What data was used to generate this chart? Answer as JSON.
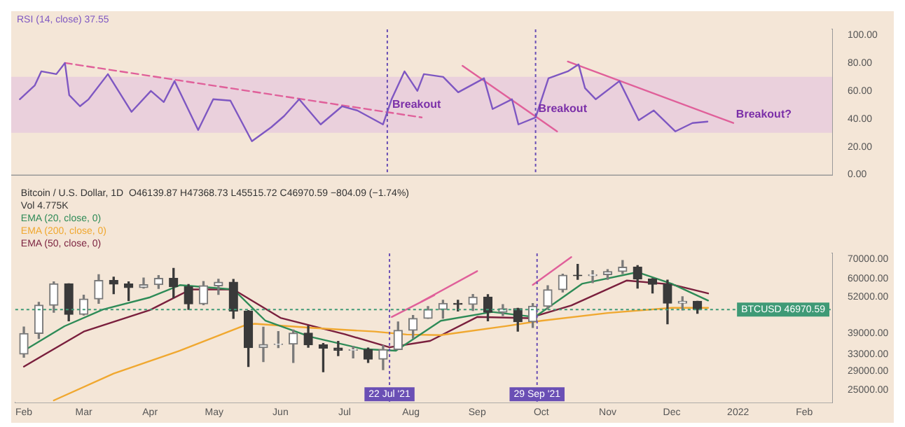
{
  "chart_data": [
    {
      "type": "line",
      "x": [
        "2021-02-01",
        "2021-02-08",
        "2021-02-11",
        "2021-02-18",
        "2021-02-22",
        "2021-02-24",
        "2021-03-01",
        "2021-03-05",
        "2021-03-14",
        "2021-03-25",
        "2021-04-03",
        "2021-04-09",
        "2021-04-14",
        "2021-04-25",
        "2021-05-02",
        "2021-05-10",
        "2021-05-20",
        "2021-05-29",
        "2021-06-04",
        "2021-06-11",
        "2021-06-21",
        "2021-07-01",
        "2021-07-08",
        "2021-07-20",
        "2021-07-24",
        "2021-07-30",
        "2021-08-05",
        "2021-08-08",
        "2021-08-17",
        "2021-08-24",
        "2021-09-05",
        "2021-09-09",
        "2021-09-18",
        "2021-09-21",
        "2021-09-29",
        "2021-10-05",
        "2021-10-14",
        "2021-10-19",
        "2021-10-22",
        "2021-10-27",
        "2021-11-07",
        "2021-11-16",
        "2021-11-23",
        "2021-12-03",
        "2021-12-11",
        "2021-12-18"
      ],
      "series": [
        {
          "name": "RSI (14, close) 37.55",
          "color": "#7e57c2",
          "values": [
            54,
            64,
            74,
            72,
            80,
            57,
            49,
            54,
            72,
            45,
            60,
            52,
            67,
            32,
            54,
            53,
            24,
            34,
            42,
            54,
            36,
            49,
            46,
            36,
            54,
            74,
            60,
            72,
            70,
            59,
            69,
            47,
            54,
            36,
            41,
            69,
            74,
            79,
            62,
            54,
            67,
            39,
            46,
            31,
            37,
            38
          ]
        },
        {
          "color": "#e0609a",
          "line_style": "dashed",
          "x": [
            "2021-02-22",
            "2021-08-07"
          ],
          "values": [
            80,
            41
          ]
        },
        {
          "color": "#e0609a",
          "x": [
            "2021-08-26",
            "2021-10-09"
          ],
          "values": [
            78,
            31
          ]
        },
        {
          "color": "#e0609a",
          "x": [
            "2021-10-14",
            "2021-12-30"
          ],
          "values": [
            81,
            37
          ]
        }
      ],
      "xlim": [
        "2021-01-28",
        "2022-02-14"
      ],
      "ylim": [
        0,
        104
      ],
      "yticks": [
        {
          "value": 0,
          "label": "0.00"
        },
        {
          "value": 20,
          "label": "20.00"
        },
        {
          "value": 40,
          "label": "40.00"
        },
        {
          "value": 60,
          "label": "60.00"
        },
        {
          "value": 80,
          "label": "80.00"
        },
        {
          "value": 100,
          "label": "100.00"
        }
      ],
      "bands": [
        {
          "axis": "y",
          "from": 30,
          "to": 70,
          "color": "#ead0dc"
        }
      ],
      "ref_lines": [
        {
          "axis": "x",
          "value": "2021-07-22",
          "color": "#6a4fb5",
          "line_style": "dotted"
        },
        {
          "axis": "x",
          "value": "2021-09-29",
          "color": "#6a4fb5",
          "line_style": "dotted"
        }
      ],
      "annotations": [
        {
          "text": "Breakout",
          "x": "2021-07-23",
          "y": 44
        },
        {
          "text": "Breakout",
          "x": "2021-09-29",
          "y": 41
        },
        {
          "text": "Breakout?",
          "x": "2021-12-30",
          "y": 37
        }
      ],
      "tick_labels": "y",
      "legend": "top left",
      "marker": "none"
    },
    {
      "type": "candlestick",
      "colors": [
        "#7a7a7a",
        "#7a7a7a",
        "#7a7a7a",
        "#3a3a3a",
        "#7a7a7a",
        "#7a7a7a",
        "#3a3a3a",
        "#3a3a3a",
        "#7a7a7a",
        "#7a7a7a",
        "#3a3a3a",
        "#3a3a3a",
        "#7a7a7a",
        "#7a7a7a",
        "#3a3a3a",
        "#3a3a3a",
        "#7a7a7a",
        "#7a7a7a",
        "#7a7a7a",
        "#3a3a3a",
        "#3a3a3a",
        "#3a3a3a",
        "#7a7a7a",
        "#3a3a3a",
        "#7a7a7a",
        "#7a7a7a",
        "#7a7a7a",
        "#7a7a7a",
        "#7a7a7a",
        "#3a3a3a",
        "#7a7a7a",
        "#3a3a3a",
        "#7a7a7a",
        "#3a3a3a",
        "#7a7a7a",
        "#7a7a7a",
        "#7a7a7a",
        "#3a3a3a",
        "#7a7a7a",
        "#7a7a7a",
        "#7a7a7a",
        "#3a3a3a",
        "#3a3a3a",
        "#3a3a3a",
        "#7a7a7a",
        "#3a3a3a"
      ],
      "x": [
        "2021-02-01",
        "2021-02-08",
        "2021-02-15",
        "2021-02-22",
        "2021-03-01",
        "2021-03-08",
        "2021-03-15",
        "2021-03-22",
        "2021-03-29",
        "2021-04-05",
        "2021-04-12",
        "2021-04-19",
        "2021-04-26",
        "2021-05-03",
        "2021-05-10",
        "2021-05-17",
        "2021-05-24",
        "2021-05-31",
        "2021-06-07",
        "2021-06-14",
        "2021-06-21",
        "2021-06-28",
        "2021-07-05",
        "2021-07-12",
        "2021-07-19",
        "2021-07-26",
        "2021-08-02",
        "2021-08-09",
        "2021-08-16",
        "2021-08-23",
        "2021-08-30",
        "2021-09-06",
        "2021-09-13",
        "2021-09-20",
        "2021-09-27",
        "2021-10-04",
        "2021-10-11",
        "2021-10-18",
        "2021-10-25",
        "2021-11-01",
        "2021-11-08",
        "2021-11-15",
        "2021-11-22",
        "2021-11-29",
        "2021-12-06",
        "2021-12-13"
      ],
      "ohlc": [
        [
          33100,
          40950,
          32300,
          38900
        ],
        [
          38900,
          49700,
          37400,
          48600
        ],
        [
          48600,
          58350,
          46000,
          57500
        ],
        [
          57500,
          57500,
          43000,
          45200
        ],
        [
          45200,
          52600,
          45000,
          51000
        ],
        [
          51000,
          61800,
          49300,
          59000
        ],
        [
          59000,
          60600,
          53200,
          57400
        ],
        [
          57400,
          58400,
          50400,
          55800
        ],
        [
          55800,
          60200,
          55600,
          57100
        ],
        [
          57100,
          61300,
          55400,
          60000
        ],
        [
          60000,
          64900,
          51500,
          56200
        ],
        [
          56200,
          57200,
          47000,
          49100
        ],
        [
          49100,
          58500,
          48800,
          56600
        ],
        [
          56600,
          59600,
          52900,
          58200
        ],
        [
          58200,
          59500,
          43800,
          46400
        ],
        [
          46400,
          46600,
          30000,
          34800
        ],
        [
          34800,
          40900,
          31200,
          35700
        ],
        [
          35700,
          39500,
          34800,
          35800
        ],
        [
          35800,
          40000,
          31000,
          39000
        ],
        [
          39000,
          41300,
          34900,
          35600
        ],
        [
          35600,
          36000,
          28800,
          34700
        ],
        [
          34700,
          36600,
          32700,
          34100
        ],
        [
          34100,
          35100,
          32100,
          34300
        ],
        [
          34300,
          34700,
          31000,
          31800
        ],
        [
          31800,
          35400,
          29300,
          34300
        ],
        [
          34300,
          42600,
          34300,
          39900
        ],
        [
          39900,
          44800,
          37500,
          43800
        ],
        [
          43800,
          48100,
          43800,
          47000
        ],
        [
          47000,
          50500,
          43900,
          49300
        ],
        [
          49300,
          50500,
          46400,
          48900
        ],
        [
          48900,
          52900,
          46600,
          51800
        ],
        [
          51800,
          52800,
          43000,
          46000
        ],
        [
          46000,
          48800,
          44800,
          47300
        ],
        [
          47300,
          47400,
          39600,
          42700
        ],
        [
          42700,
          49200,
          40800,
          48200
        ],
        [
          48200,
          56600,
          47100,
          54900
        ],
        [
          54900,
          62000,
          53900,
          61500
        ],
        [
          61500,
          67000,
          59500,
          61300
        ],
        [
          61300,
          63700,
          58000,
          61800
        ],
        [
          61800,
          64300,
          59500,
          63300
        ],
        [
          63300,
          69000,
          62300,
          65500
        ],
        [
          65500,
          66300,
          55600,
          59700
        ],
        [
          59700,
          59900,
          53500,
          57300
        ],
        [
          57300,
          59200,
          42000,
          49400
        ],
        [
          49400,
          51900,
          46800,
          50100
        ],
        [
          50100,
          50100,
          45600,
          46970.59
        ]
      ],
      "series": [
        {
          "name": "EMA (20, close, 0)",
          "type": "line",
          "color": "#2e8b57",
          "x": [
            "2021-02-01",
            "2021-02-20",
            "2021-03-10",
            "2021-04-01",
            "2021-04-15",
            "2021-05-10",
            "2021-05-25",
            "2021-06-15",
            "2021-07-10",
            "2021-07-25",
            "2021-08-15",
            "2021-09-08",
            "2021-09-28",
            "2021-10-20",
            "2021-11-15",
            "2021-12-01",
            "2021-12-18"
          ],
          "values": [
            34000,
            41200,
            47000,
            51700,
            56900,
            55000,
            43000,
            37900,
            34400,
            34000,
            43000,
            46100,
            44300,
            57500,
            63000,
            57500,
            50400
          ]
        },
        {
          "name": "EMA (200, close, 0)",
          "type": "line",
          "color": "#f0a830",
          "x": [
            "2021-02-15",
            "2021-03-15",
            "2021-04-15",
            "2021-05-15",
            "2021-05-20",
            "2021-06-15",
            "2021-07-15",
            "2021-07-30",
            "2021-08-15",
            "2021-09-15",
            "2021-10-01",
            "2021-11-01",
            "2021-12-01",
            "2021-12-18"
          ],
          "values": [
            23000,
            28400,
            34000,
            41400,
            42000,
            40700,
            39500,
            38600,
            38400,
            41300,
            43000,
            45700,
            47600,
            47600
          ]
        },
        {
          "name": "EMA (50, close, 0)",
          "type": "line",
          "color": "#7a1f3d",
          "x": [
            "2021-02-01",
            "2021-03-01",
            "2021-04-01",
            "2021-04-20",
            "2021-05-10",
            "2021-06-01",
            "2021-07-01",
            "2021-07-22",
            "2021-08-10",
            "2021-09-01",
            "2021-09-25",
            "2021-10-15",
            "2021-11-10",
            "2021-12-01",
            "2021-12-18"
          ],
          "values": [
            30000,
            39500,
            46800,
            55000,
            55000,
            44000,
            38700,
            34900,
            36700,
            44300,
            43900,
            48500,
            59000,
            57200,
            53300
          ]
        },
        {
          "type": "line",
          "color": "#e0609a",
          "x": [
            "2021-07-23",
            "2021-08-12"
          ],
          "values": [
            44300,
            52600
          ]
        },
        {
          "type": "line",
          "color": "#e0609a",
          "x": [
            "2021-08-06",
            "2021-09-01"
          ],
          "values": [
            50000,
            63500
          ]
        },
        {
          "type": "line",
          "color": "#e0609a",
          "x": [
            "2021-09-27",
            "2021-10-15"
          ],
          "values": [
            57000,
            70900
          ]
        }
      ],
      "log": true,
      "xlim": [
        "2021-01-28",
        "2022-02-14"
      ],
      "ylim": [
        22600,
        73000
      ],
      "yticks": [
        {
          "value": 25000,
          "label": "25000.00"
        },
        {
          "value": 29000,
          "label": "29000.00"
        },
        {
          "value": 33000,
          "label": "33000.00"
        },
        {
          "value": 39000,
          "label": "39000.00"
        },
        {
          "value": 52000,
          "label": "52000.00"
        },
        {
          "value": 60000,
          "label": "60000.00"
        },
        {
          "value": 70000,
          "label": "70000.00"
        }
      ],
      "xticks": [
        {
          "value": "2021-02-01",
          "label": "Feb"
        },
        {
          "value": "2021-03-01",
          "label": "Mar"
        },
        {
          "value": "2021-04-01",
          "label": "Apr"
        },
        {
          "value": "2021-05-01",
          "label": "May"
        },
        {
          "value": "2021-06-01",
          "label": "Jun"
        },
        {
          "value": "2021-07-01",
          "label": "Jul"
        },
        {
          "value": "2021-08-01",
          "label": "Aug"
        },
        {
          "value": "2021-09-01",
          "label": "Sep"
        },
        {
          "value": "2021-10-01",
          "label": "Oct"
        },
        {
          "value": "2021-11-01",
          "label": "Nov"
        },
        {
          "value": "2021-12-01",
          "label": "Dec"
        },
        {
          "value": "2022-01-01",
          "label": "2022"
        },
        {
          "value": "2022-02-01",
          "label": "Feb"
        }
      ],
      "ref_lines": [
        {
          "axis": "x",
          "value": "2021-07-22",
          "label": "22 Jul '21",
          "color": "#6a4fb5",
          "line_style": "dotted"
        },
        {
          "axis": "x",
          "value": "2021-09-29",
          "label": "29 Sep '21",
          "color": "#6a4fb5",
          "line_style": "dotted"
        },
        {
          "axis": "y",
          "value": 46970.59,
          "label": "BTCUSD 46970.59",
          "color": "#3f9a76",
          "line_style": "dotted"
        }
      ],
      "annotations": [
        "Bitcoin / U.S. Dollar, 1D  O46139.87 H47368.73 L45515.72 C46970.59 −804.09 (−1.74%)",
        "Vol 4.775K"
      ],
      "legend": "top left",
      "marker": "none"
    }
  ]
}
